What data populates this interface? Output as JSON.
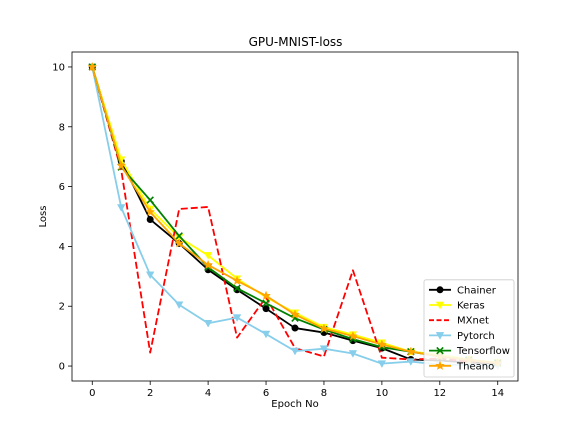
{
  "chart_data": {
    "type": "line",
    "title": "GPU-MNIST-loss",
    "xlabel": "Epoch No",
    "ylabel": "Loss",
    "xlim": [
      -0.7,
      14.7
    ],
    "ylim": [
      -0.5,
      10.5
    ],
    "xticks": [
      0,
      2,
      4,
      6,
      8,
      10,
      12,
      14
    ],
    "yticks": [
      0,
      2,
      4,
      6,
      8,
      10
    ],
    "grid": false,
    "legend_position": "bottom-right",
    "x": [
      0,
      1,
      2,
      3,
      4,
      5,
      6,
      7,
      8,
      9,
      10,
      11,
      12,
      13,
      14
    ],
    "series": [
      {
        "name": "Chainer",
        "color": "#000000",
        "dash": "solid",
        "marker": "circle",
        "values": [
          10,
          6.85,
          4.9,
          4.1,
          3.22,
          2.55,
          1.92,
          1.27,
          1.12,
          0.85,
          0.6,
          0.22,
          0.18,
          0.12,
          0.08
        ]
      },
      {
        "name": "Keras",
        "color": "#ffff00",
        "dash": "solid",
        "marker": "triangle-down",
        "values": [
          10,
          6.9,
          5.25,
          4.3,
          3.7,
          2.92,
          2.3,
          1.78,
          1.3,
          1.05,
          0.78,
          0.48,
          0.38,
          0.22,
          0.12
        ]
      },
      {
        "name": "MXnet",
        "color": "#ff0000",
        "dash": "dashed",
        "marker": "none",
        "values": [
          10,
          6.55,
          0.45,
          5.25,
          5.32,
          0.95,
          2.3,
          0.6,
          0.32,
          3.2,
          0.28,
          0.22,
          0.25,
          0.15,
          0.1
        ]
      },
      {
        "name": "Pytorch",
        "color": "#87ceeb",
        "dash": "solid",
        "marker": "triangle-down",
        "values": [
          10,
          5.3,
          3.05,
          2.05,
          1.43,
          1.62,
          1.07,
          0.5,
          0.58,
          0.42,
          0.08,
          0.15,
          0.05,
          0.03,
          0.01
        ]
      },
      {
        "name": "Tensorflow",
        "color": "#008000",
        "dash": "solid",
        "marker": "x",
        "values": [
          10,
          6.65,
          5.55,
          4.35,
          3.3,
          2.6,
          2.1,
          1.6,
          1.22,
          0.9,
          0.63,
          0.48,
          0.32,
          0.2,
          0.1
        ]
      },
      {
        "name": "Theano",
        "color": "#ffa500",
        "dash": "solid",
        "marker": "star",
        "values": [
          10,
          6.7,
          5.15,
          4.1,
          3.38,
          2.85,
          2.35,
          1.72,
          1.25,
          1.0,
          0.72,
          0.48,
          0.32,
          0.2,
          0.1
        ]
      }
    ]
  }
}
